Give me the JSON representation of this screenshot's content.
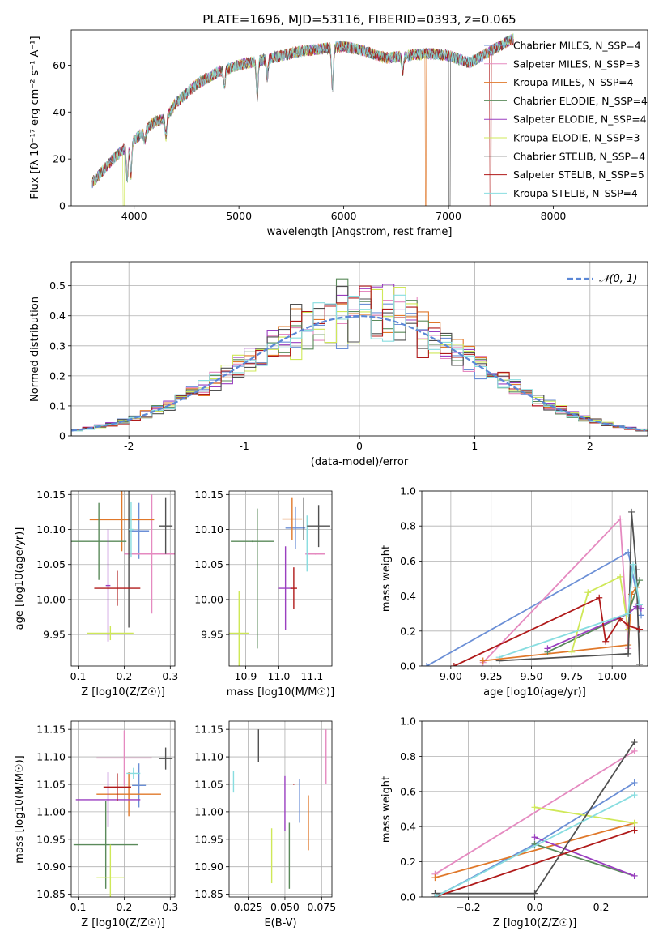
{
  "colors": {
    "Chabrier MILES": "#6b8fd6",
    "Salpeter MILES": "#e58ac0",
    "Kroupa MILES": "#e0782a",
    "Chabrier ELODIE": "#5a8a5a",
    "Salpeter ELODIE": "#9a3fc0",
    "Kroupa ELODIE": "#cfe858",
    "Chabrier STELIB": "#505050",
    "Salpeter STELIB": "#b01a1a",
    "Kroupa STELIB": "#88dde0",
    "normal": "#5b87d6"
  },
  "chart_data": [
    {
      "type": "line",
      "title": "PLATE=1696, MJD=53116, FIBERID=0393, z=0.065",
      "xlabel": "wavelength [Angstrom, rest frame]",
      "ylabel": "Flux [fλ 10⁻¹⁷ erg cm⁻² s⁻¹ A⁻¹]",
      "xlim": [
        3400,
        8900
      ],
      "ylim": [
        0,
        75
      ],
      "xticks": [
        4000,
        5000,
        6000,
        7000,
        8000
      ],
      "yticks": [
        0,
        20,
        40,
        60
      ],
      "grid": false,
      "legend_position": "right",
      "legend": [
        "Chabrier MILES, N_SSP=4",
        "Salpeter MILES, N_SSP=3",
        "Kroupa MILES, N_SSP=4",
        "Chabrier ELODIE, N_SSP=4",
        "Salpeter ELODIE, N_SSP=4",
        "Kroupa ELODIE, N_SSP=3",
        "Chabrier STELIB, N_SSP=4",
        "Salpeter STELIB, N_SSP=5",
        "Kroupa STELIB, N_SSP=4"
      ],
      "continuum": {
        "x": [
          3600,
          3700,
          3800,
          3900,
          4000,
          4100,
          4200,
          4300,
          4400,
          4500,
          4600,
          4800,
          5000,
          5200,
          5400,
          5600,
          5800,
          6000,
          6200,
          6400,
          6600,
          6800,
          7000,
          7200,
          7400,
          7600
        ],
        "y": [
          10,
          15,
          20,
          24,
          28,
          32,
          36,
          37,
          44,
          48,
          52,
          57,
          60,
          62,
          64,
          66,
          67,
          68,
          66,
          63,
          64,
          65,
          64,
          61,
          66,
          71
        ]
      },
      "absorption_features": [
        {
          "x": 3934,
          "depth": 0.55
        },
        {
          "x": 3969,
          "depth": 0.5
        },
        {
          "x": 4102,
          "depth": 0.15
        },
        {
          "x": 4304,
          "depth": 0.2
        },
        {
          "x": 4861,
          "depth": 0.12
        },
        {
          "x": 5175,
          "depth": 0.25
        },
        {
          "x": 5270,
          "depth": 0.12
        },
        {
          "x": 5893,
          "depth": 0.25
        },
        {
          "x": 6563,
          "depth": 0.1
        }
      ],
      "model_drops": [
        {
          "x": 6782,
          "series": "Kroupa MILES"
        },
        {
          "x": 7010,
          "series": "Chabrier STELIB"
        },
        {
          "x": 7400,
          "series": "Salpeter STELIB"
        },
        {
          "x": 3900,
          "series": "Kroupa ELODIE"
        }
      ]
    },
    {
      "type": "histogram",
      "xlabel": "(data-model)/error",
      "ylabel": "Normed distribution",
      "xlim": [
        -2.5,
        2.5
      ],
      "ylim": [
        0,
        0.58
      ],
      "xticks": [
        -2,
        -1,
        0,
        1,
        2
      ],
      "yticks": [
        0.0,
        0.1,
        0.2,
        0.3,
        0.4,
        0.5
      ],
      "grid": true,
      "legend_position": "top-right",
      "reference_curve": "𝒩(0, 1)",
      "bin_width": 0.1,
      "bin_start": -2.5
    },
    {
      "type": "errorbar",
      "xlabel": "Z [log10(Z/Z☉)]",
      "ylabel": "age  [log10(age/yr)]",
      "xlim": [
        0.085,
        0.31
      ],
      "ylim": [
        9.905,
        10.155
      ],
      "xticks": [
        "0.1",
        "0.2",
        "0.3"
      ],
      "yticks": [
        "9.95",
        "10.00",
        "10.05",
        "10.10",
        "10.15"
      ],
      "grid": true,
      "points": [
        {
          "series": "Chabrier MILES",
          "x": 0.232,
          "xerr": 0.022,
          "y": 10.098,
          "yerr": 0.04
        },
        {
          "series": "Salpeter MILES",
          "x": 0.26,
          "xerr": 0.06,
          "y": 10.065,
          "yerr": 0.085
        },
        {
          "series": "Kroupa MILES",
          "x": 0.195,
          "xerr": 0.07,
          "y": 10.114,
          "yerr": 0.045
        },
        {
          "series": "Chabrier ELODIE",
          "x": 0.145,
          "xerr": 0.06,
          "y": 10.083,
          "yerr": 0.055
        },
        {
          "series": "Salpeter ELODIE",
          "x": 0.165,
          "xerr": 0.005,
          "y": 10.02,
          "yerr": 0.08
        },
        {
          "series": "Kroupa ELODIE",
          "x": 0.17,
          "xerr": 0.05,
          "y": 9.952,
          "yerr": 0.01
        },
        {
          "series": "Chabrier STELIB",
          "x": 0.21,
          "xerr": 0.001,
          "y": 10.06,
          "yerr": 0.1
        },
        {
          "series": "Salpeter STELIB",
          "x": 0.185,
          "xerr": 0.05,
          "y": 10.016,
          "yerr": 0.025
        },
        {
          "series": "Kroupa STELIB",
          "x": 0.215,
          "xerr": 0.005,
          "y": 10.1,
          "yerr": 0.04
        },
        {
          "series": "Chabrier STELIB",
          "x": 0.29,
          "xerr": 0.015,
          "y": 10.105,
          "yerr": 0.04
        }
      ]
    },
    {
      "type": "errorbar",
      "xlabel": "mass [log10(M/M☉)]",
      "xlim": [
        10.85,
        11.16
      ],
      "ylim": [
        9.905,
        10.155
      ],
      "xticks": [
        "10.9",
        "11.0",
        "11.1"
      ],
      "yticks": [
        "9.95",
        "10.00",
        "10.05",
        "10.10",
        "10.15"
      ],
      "grid": true,
      "points": [
        {
          "series": "Chabrier MILES",
          "x": 11.05,
          "xerr": 0.03,
          "y": 10.102,
          "yerr": 0.03
        },
        {
          "series": "Salpeter MILES",
          "x": 11.11,
          "xerr": 0.03,
          "y": 10.065,
          "yerr": 0.001
        },
        {
          "series": "Kroupa MILES",
          "x": 11.04,
          "xerr": 0.03,
          "y": 10.115,
          "yerr": 0.03
        },
        {
          "series": "Chabrier ELODIE",
          "x": 10.92,
          "xerr": 0.065,
          "y": 10.083,
          "yerr": 0.001
        },
        {
          "series": "Salpeter ELODIE",
          "x": 11.02,
          "xerr": 0.02,
          "y": 10.016,
          "yerr": 0.06
        },
        {
          "series": "Kroupa ELODIE",
          "x": 10.88,
          "xerr": 0.03,
          "y": 9.952,
          "yerr": 0.06
        },
        {
          "series": "Chabrier ELODIE",
          "x": 10.935,
          "xerr": 0.001,
          "y": 10.03,
          "yerr": 0.1
        },
        {
          "series": "Salpeter STELIB",
          "x": 11.045,
          "xerr": 0.01,
          "y": 10.016,
          "yerr": 0.03
        },
        {
          "series": "Kroupa STELIB",
          "x": 11.085,
          "xerr": 0.001,
          "y": 10.08,
          "yerr": 0.04
        },
        {
          "series": "Chabrier STELIB",
          "x": 11.12,
          "xerr": 0.035,
          "y": 10.105,
          "yerr": 0.03
        },
        {
          "series": "Chabrier STELIB",
          "x": 11.075,
          "xerr": 0.001,
          "y": 10.115,
          "yerr": 0.03
        }
      ]
    },
    {
      "type": "line",
      "xlabel": "age  [log10(age/yr)]",
      "ylabel": "mass weight",
      "xlim": [
        8.82,
        10.22
      ],
      "ylim": [
        0,
        1
      ],
      "xticks": [
        "9.00",
        "9.25",
        "9.50",
        "9.75",
        "10.00"
      ],
      "yticks": [
        "0.0",
        "0.2",
        "0.4",
        "0.6",
        "0.8",
        "1.0"
      ],
      "grid": true,
      "series": [
        {
          "name": "Chabrier MILES",
          "x": [
            8.85,
            10.1,
            10.18
          ],
          "y": [
            0.0,
            0.65,
            0.29
          ]
        },
        {
          "name": "Salpeter MILES",
          "x": [
            9.2,
            10.05,
            10.1
          ],
          "y": [
            0.02,
            0.84,
            0.1
          ]
        },
        {
          "name": "Kroupa MILES",
          "x": [
            9.2,
            10.1,
            10.12,
            10.15
          ],
          "y": [
            0.03,
            0.12,
            0.41,
            0.45
          ]
        },
        {
          "name": "Chabrier ELODIE",
          "x": [
            9.6,
            10.1,
            10.17
          ],
          "y": [
            0.08,
            0.3,
            0.49
          ]
        },
        {
          "name": "Salpeter ELODIE",
          "x": [
            9.6,
            10.1,
            10.15,
            10.18
          ],
          "y": [
            0.1,
            0.3,
            0.34,
            0.33
          ]
        },
        {
          "name": "Kroupa ELODIE",
          "x": [
            9.75,
            9.85,
            10.05,
            10.1
          ],
          "y": [
            0.08,
            0.42,
            0.51,
            0.21
          ]
        },
        {
          "name": "Chabrier STELIB",
          "x": [
            9.3,
            10.1,
            10.12,
            10.15,
            10.17
          ],
          "y": [
            0.03,
            0.07,
            0.88,
            0.55,
            0.01
          ]
        },
        {
          "name": "Salpeter STELIB",
          "x": [
            9.02,
            9.92,
            9.96,
            10.05,
            10.1,
            10.17
          ],
          "y": [
            0.0,
            0.39,
            0.14,
            0.27,
            0.23,
            0.21
          ]
        },
        {
          "name": "Kroupa STELIB",
          "x": [
            9.3,
            10.1,
            10.13,
            10.17
          ],
          "y": [
            0.05,
            0.3,
            0.58,
            0.35
          ]
        }
      ]
    },
    {
      "type": "errorbar",
      "xlabel": "Z [log10(Z/Z☉)]",
      "ylabel": "mass [log10(M/M☉)]",
      "xlim": [
        0.085,
        0.31
      ],
      "ylim": [
        10.845,
        11.165
      ],
      "xticks": [
        "0.1",
        "0.2",
        "0.3"
      ],
      "yticks": [
        "10.85",
        "10.90",
        "10.95",
        "11.00",
        "11.05",
        "11.10",
        "11.15"
      ],
      "grid": true,
      "points": [
        {
          "series": "Chabrier MILES",
          "x": 0.232,
          "xerr": 0.015,
          "y": 11.048,
          "yerr": 0.04
        },
        {
          "series": "Salpeter MILES",
          "x": 0.2,
          "xerr": 0.06,
          "y": 11.098,
          "yerr": 0.05
        },
        {
          "series": "Kroupa MILES",
          "x": 0.21,
          "xerr": 0.07,
          "y": 11.032,
          "yerr": 0.04
        },
        {
          "series": "Chabrier ELODIE",
          "x": 0.16,
          "xerr": 0.07,
          "y": 10.94,
          "yerr": 0.08
        },
        {
          "series": "Salpeter ELODIE",
          "x": 0.165,
          "xerr": 0.07,
          "y": 11.022,
          "yerr": 0.05
        },
        {
          "series": "Kroupa ELODIE",
          "x": 0.17,
          "xerr": 0.03,
          "y": 10.88,
          "yerr": 0.06
        },
        {
          "series": "Chabrier STELIB",
          "x": 0.29,
          "xerr": 0.015,
          "y": 11.097,
          "yerr": 0.02
        },
        {
          "series": "Salpeter STELIB",
          "x": 0.185,
          "xerr": 0.03,
          "y": 11.045,
          "yerr": 0.025
        },
        {
          "series": "Kroupa STELIB",
          "x": 0.22,
          "xerr": 0.015,
          "y": 11.07,
          "yerr": 0.01
        }
      ]
    },
    {
      "type": "errorbar",
      "xlabel": "E(B-V)",
      "xlim": [
        0.012,
        0.082
      ],
      "ylim": [
        10.845,
        11.165
      ],
      "xticks": [
        "0.025",
        "0.050",
        "0.075"
      ],
      "yticks": [
        "10.85",
        "10.90",
        "10.95",
        "11.00",
        "11.05",
        "11.10",
        "11.15"
      ],
      "grid": true,
      "points": [
        {
          "series": "Chabrier MILES",
          "x": 0.06,
          "y": 11.02,
          "yerr": 0.04
        },
        {
          "series": "Salpeter MILES",
          "x": 0.078,
          "y": 11.1,
          "yerr": 0.05
        },
        {
          "series": "Kroupa MILES",
          "x": 0.066,
          "y": 10.98,
          "yerr": 0.05
        },
        {
          "series": "Chabrier ELODIE",
          "x": 0.053,
          "y": 10.92,
          "yerr": 0.06
        },
        {
          "series": "Salpeter ELODIE",
          "x": 0.05,
          "y": 11.015,
          "yerr": 0.05
        },
        {
          "series": "Kroupa ELODIE",
          "x": 0.041,
          "y": 10.92,
          "yerr": 0.05
        },
        {
          "series": "Chabrier STELIB",
          "x": 0.032,
          "y": 11.12,
          "yerr": 0.03
        },
        {
          "series": "Salpeter STELIB",
          "x": 0.056,
          "y": 11.05,
          "yerr": 0.001
        },
        {
          "series": "Kroupa STELIB",
          "x": 0.015,
          "y": 11.055,
          "yerr": 0.02
        }
      ]
    },
    {
      "type": "line",
      "xlabel": "Z [log10(Z/Z☉)]",
      "ylabel": "mass weight",
      "xlim": [
        -0.34,
        0.34
      ],
      "ylim": [
        0,
        1
      ],
      "xticks": [
        "−0.2",
        "0.0",
        "0.2"
      ],
      "yticks": [
        "0.0",
        "0.2",
        "0.4",
        "0.6",
        "0.8",
        "1.0"
      ],
      "grid": true,
      "series": [
        {
          "name": "Chabrier MILES",
          "x": [
            -0.3,
            0.0,
            0.3
          ],
          "y": [
            0.0,
            0.3,
            0.65
          ]
        },
        {
          "name": "Salpeter MILES",
          "x": [
            -0.3,
            0.3
          ],
          "y": [
            0.13,
            0.83
          ]
        },
        {
          "name": "Kroupa MILES",
          "x": [
            -0.3,
            0.3
          ],
          "y": [
            0.11,
            0.42
          ]
        },
        {
          "name": "Chabrier ELODIE",
          "x": [
            0.0,
            0.3
          ],
          "y": [
            0.3,
            0.12
          ]
        },
        {
          "name": "Salpeter ELODIE",
          "x": [
            0.0,
            0.3
          ],
          "y": [
            0.34,
            0.12
          ]
        },
        {
          "name": "Kroupa ELODIE",
          "x": [
            0.0,
            0.3
          ],
          "y": [
            0.51,
            0.42
          ]
        },
        {
          "name": "Chabrier STELIB",
          "x": [
            -0.3,
            0.0,
            0.3
          ],
          "y": [
            0.02,
            0.02,
            0.88
          ]
        },
        {
          "name": "Salpeter STELIB",
          "x": [
            -0.3,
            0.3
          ],
          "y": [
            0.0,
            0.38
          ]
        },
        {
          "name": "Kroupa STELIB",
          "x": [
            -0.3,
            0.3
          ],
          "y": [
            0.0,
            0.58
          ]
        }
      ]
    }
  ]
}
